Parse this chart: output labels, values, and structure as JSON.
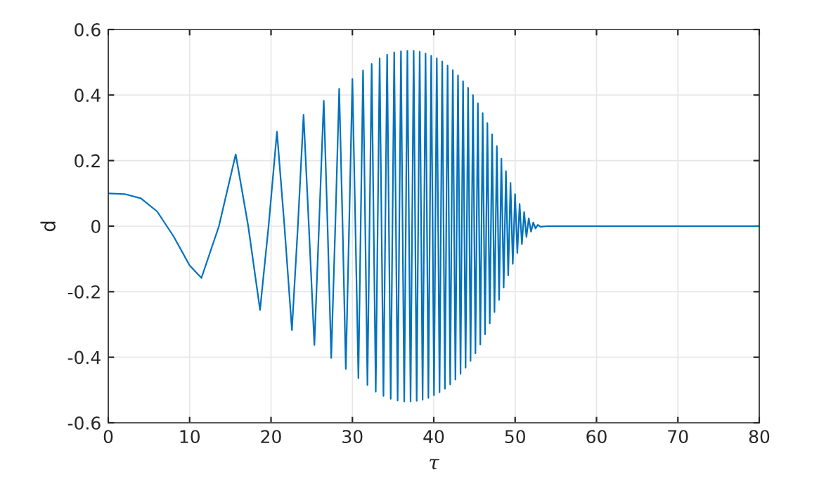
{
  "chart_data": {
    "type": "line",
    "xlabel": "τ",
    "ylabel": "d",
    "xlim": [
      0,
      80
    ],
    "ylim": [
      -0.6,
      0.6
    ],
    "xticks": [
      0,
      10,
      20,
      30,
      40,
      50,
      60,
      70,
      80
    ],
    "yticks": [
      -0.6,
      -0.4,
      -0.2,
      0,
      0.2,
      0.4,
      0.6
    ],
    "grid": true,
    "series": [
      {
        "color": "#0072bd",
        "x": [
          0,
          2,
          4,
          6,
          8,
          10,
          11.45,
          13.6,
          15.66,
          17.2,
          18.65,
          19.7,
          20.73,
          21.65,
          22.57,
          23.3,
          24.0,
          24.65,
          25.33,
          25.9,
          26.48,
          26.95,
          27.4,
          27.9,
          28.38,
          28.8,
          29.19,
          29.6,
          30.0,
          30.37,
          30.74,
          31.02,
          31.31,
          31.85,
          32.37,
          32.87,
          33.35,
          33.82,
          34.27,
          34.71,
          35.14,
          35.56,
          35.97,
          36.37,
          36.76,
          37.15,
          37.53,
          37.9,
          38.27,
          38.63,
          38.99,
          39.34,
          39.69,
          40.03,
          40.37,
          40.71,
          41.04,
          41.37,
          41.7,
          42.02,
          42.34,
          42.66,
          42.98,
          43.29,
          43.6,
          43.91,
          44.22,
          44.52,
          44.82,
          45.12,
          45.42,
          45.72,
          46.01,
          46.3,
          46.59,
          46.88,
          47.17,
          47.46,
          47.75,
          48.03,
          48.31,
          48.59,
          48.87,
          49.15,
          49.43,
          49.71,
          49.99,
          50.27,
          50.55,
          50.83,
          51.11,
          51.39,
          51.67,
          51.95,
          52.23,
          52.51,
          52.79,
          53.1,
          54,
          80
        ],
        "values": [
          0.1,
          0.098,
          0.085,
          0.045,
          -0.03,
          -0.12,
          -0.158,
          0,
          0.219,
          0,
          -0.256,
          0,
          0.288,
          0,
          -0.317,
          0,
          0.34,
          0,
          -0.363,
          0,
          0.383,
          0,
          -0.402,
          0,
          0.419,
          0,
          -0.436,
          0,
          0.449,
          0,
          -0.464,
          0,
          0.475,
          -0.485,
          0.495,
          -0.505,
          0.512,
          -0.518,
          0.523,
          -0.527,
          0.53,
          -0.532,
          0.534,
          -0.535,
          0.535,
          -0.535,
          0.535,
          -0.533,
          0.532,
          -0.53,
          0.527,
          -0.524,
          0.52,
          -0.516,
          0.512,
          -0.507,
          0.502,
          -0.496,
          0.49,
          -0.483,
          0.476,
          -0.468,
          0.46,
          -0.451,
          0.442,
          -0.432,
          0.422,
          -0.411,
          0.4,
          -0.388,
          0.375,
          -0.361,
          0.345,
          -0.33,
          0.314,
          -0.297,
          0.28,
          -0.262,
          0.244,
          -0.225,
          0.206,
          -0.187,
          0.168,
          -0.15,
          0.132,
          -0.115,
          0.098,
          -0.082,
          0.068,
          -0.055,
          0.043,
          -0.033,
          0.024,
          -0.017,
          0.011,
          -0.007,
          0.004,
          -0.002,
          0,
          0
        ]
      }
    ]
  }
}
